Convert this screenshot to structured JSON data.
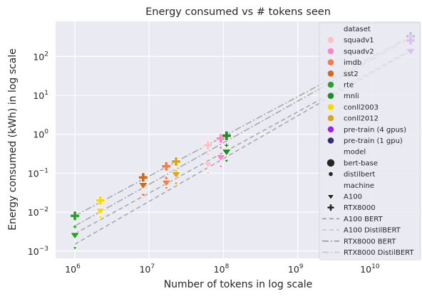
{
  "chart_data": {
    "type": "scatter",
    "title": "Energy consumed vs # tokens seen",
    "xlabel": "Number of tokens in log scale",
    "ylabel": "Energy consumed (kWh) in log scale",
    "x_scale": "log",
    "y_scale": "log",
    "xlim": [
      550000,
      45000000000
    ],
    "ylim": [
      0.00065,
      800
    ],
    "xticks": [
      {
        "value": 1000000,
        "base": "10",
        "exp": "6"
      },
      {
        "value": 10000000,
        "base": "10",
        "exp": "7"
      },
      {
        "value": 100000000,
        "base": "10",
        "exp": "8"
      },
      {
        "value": 1000000000,
        "base": "10",
        "exp": "9"
      },
      {
        "value": 10000000000,
        "base": "10",
        "exp": "10"
      }
    ],
    "yticks": [
      {
        "value": 0.001,
        "base": "10",
        "exp": "−3"
      },
      {
        "value": 0.01,
        "base": "10",
        "exp": "−2"
      },
      {
        "value": 0.1,
        "base": "10",
        "exp": "−1"
      },
      {
        "value": 1,
        "base": "10",
        "exp": "0"
      },
      {
        "value": 10,
        "base": "10",
        "exp": "1"
      },
      {
        "value": 100,
        "base": "10",
        "exp": "2"
      }
    ],
    "grid": true,
    "legend_position": "top-right",
    "colors": {
      "squadv1": "#ffc0cb",
      "squadv2": "#ff86c3",
      "imdb": "#f07f50",
      "sst2": "#d2691e",
      "rte": "#2ca02c",
      "mnli": "#228b22",
      "conll2003": "#ffd700",
      "conll2012": "#daa520",
      "pre-train (4 gpus)": "#a020f0",
      "pre-train (1 gpu)": "#3c2a6e",
      "background": "#eaeaf2",
      "grid": "#ffffff",
      "fit_lines": "#a8a8a8"
    },
    "legend": {
      "dataset_title": "dataset",
      "datasets": [
        "squadv1",
        "squadv2",
        "imdb",
        "sst2",
        "rte",
        "mnli",
        "conll2003",
        "conll2012",
        "pre-train (4 gpus)",
        "pre-train (1 gpu)"
      ],
      "model_title": "model",
      "models": [
        "bert-base",
        "distilbert"
      ],
      "machine_title": "machine",
      "machines": [
        "A100",
        "RTX8000"
      ],
      "lines": [
        {
          "label": "A100 BERT",
          "dash": "dashed"
        },
        {
          "label": "A100 DistilBERT",
          "dash": "dashed"
        },
        {
          "label": "RTX8000 BERT",
          "dash": "dashdot"
        },
        {
          "label": "RTX8000 DistilBERT",
          "dash": "dashdot"
        }
      ]
    },
    "fit_lines": [
      {
        "name": "A100 BERT",
        "dash": "dashed",
        "x": [
          1000000,
          33000000000
        ],
        "y": [
          0.0028,
          145
        ]
      },
      {
        "name": "A100 DistilBERT",
        "dash": "dashed",
        "x": [
          1000000,
          33000000000
        ],
        "y": [
          0.0015,
          140
        ]
      },
      {
        "name": "RTX8000 BERT",
        "dash": "dashdot",
        "x": [
          1000000,
          33000000000
        ],
        "y": [
          0.008,
          330
        ]
      },
      {
        "name": "RTX8000 DistilBERT",
        "dash": "dashdot",
        "x": [
          1000000,
          33000000000
        ],
        "y": [
          0.0044,
          300
        ]
      }
    ],
    "points": [
      {
        "dataset": "rte",
        "model": "bert-base",
        "machine": "RTX8000",
        "x": 1000000,
        "y": 0.008
      },
      {
        "dataset": "rte",
        "model": "distilbert",
        "machine": "RTX8000",
        "x": 1000000,
        "y": 0.0042
      },
      {
        "dataset": "rte",
        "model": "bert-base",
        "machine": "A100",
        "x": 1000000,
        "y": 0.0026
      },
      {
        "dataset": "rte",
        "model": "distilbert",
        "machine": "A100",
        "x": 1000000,
        "y": 0.0012
      },
      {
        "dataset": "conll2003",
        "model": "bert-base",
        "machine": "RTX8000",
        "x": 2200000,
        "y": 0.02
      },
      {
        "dataset": "conll2003",
        "model": "distilbert",
        "machine": "RTX8000",
        "x": 2200000,
        "y": 0.0118
      },
      {
        "dataset": "conll2003",
        "model": "bert-base",
        "machine": "A100",
        "x": 2200000,
        "y": 0.011
      },
      {
        "dataset": "conll2003",
        "model": "distilbert",
        "machine": "A100",
        "x": 2200000,
        "y": 0.0075
      },
      {
        "dataset": "sst2",
        "model": "bert-base",
        "machine": "RTX8000",
        "x": 8300000,
        "y": 0.078
      },
      {
        "dataset": "sst2",
        "model": "distilbert",
        "machine": "RTX8000",
        "x": 8300000,
        "y": 0.043
      },
      {
        "dataset": "sst2",
        "model": "bert-base",
        "machine": "A100",
        "x": 8300000,
        "y": 0.05
      },
      {
        "dataset": "sst2",
        "model": "distilbert",
        "machine": "A100",
        "x": 8300000,
        "y": 0.028
      },
      {
        "dataset": "imdb",
        "model": "bert-base",
        "machine": "RTX8000",
        "x": 17000000,
        "y": 0.15
      },
      {
        "dataset": "imdb",
        "model": "distilbert",
        "machine": "RTX8000",
        "x": 17000000,
        "y": 0.075
      },
      {
        "dataset": "imdb",
        "model": "bert-base",
        "machine": "A100",
        "x": 17000000,
        "y": 0.058
      },
      {
        "dataset": "imdb",
        "model": "distilbert",
        "machine": "A100",
        "x": 17000000,
        "y": 0.042
      },
      {
        "dataset": "conll2012",
        "model": "bert-base",
        "machine": "RTX8000",
        "x": 23000000,
        "y": 0.2
      },
      {
        "dataset": "conll2012",
        "model": "distilbert",
        "machine": "RTX8000",
        "x": 23000000,
        "y": 0.11
      },
      {
        "dataset": "conll2012",
        "model": "bert-base",
        "machine": "A100",
        "x": 23000000,
        "y": 0.095
      },
      {
        "dataset": "conll2012",
        "model": "distilbert",
        "machine": "A100",
        "x": 23000000,
        "y": 0.055
      },
      {
        "dataset": "squadv1",
        "model": "bert-base",
        "machine": "RTX8000",
        "x": 62000000,
        "y": 0.52
      },
      {
        "dataset": "squadv1",
        "model": "distilbert",
        "machine": "RTX8000",
        "x": 62000000,
        "y": 0.3
      },
      {
        "dataset": "squadv1",
        "model": "bert-base",
        "machine": "A100",
        "x": 62000000,
        "y": 0.17
      },
      {
        "dataset": "squadv1",
        "model": "distilbert",
        "machine": "A100",
        "x": 62000000,
        "y": 0.1
      },
      {
        "dataset": "squadv2",
        "model": "bert-base",
        "machine": "RTX8000",
        "x": 92000000,
        "y": 0.78
      },
      {
        "dataset": "squadv2",
        "model": "distilbert",
        "machine": "RTX8000",
        "x": 92000000,
        "y": 0.45
      },
      {
        "dataset": "squadv2",
        "model": "bert-base",
        "machine": "A100",
        "x": 92000000,
        "y": 0.26
      },
      {
        "dataset": "squadv2",
        "model": "distilbert",
        "machine": "A100",
        "x": 92000000,
        "y": 0.15
      },
      {
        "dataset": "mnli",
        "model": "bert-base",
        "machine": "RTX8000",
        "x": 110000000,
        "y": 0.92
      },
      {
        "dataset": "mnli",
        "model": "distilbert",
        "machine": "RTX8000",
        "x": 110000000,
        "y": 0.52
      },
      {
        "dataset": "mnli",
        "model": "bert-base",
        "machine": "A100",
        "x": 110000000,
        "y": 0.36
      },
      {
        "dataset": "mnli",
        "model": "distilbert",
        "machine": "A100",
        "x": 110000000,
        "y": 0.21
      },
      {
        "dataset": "pre-train (1 gpu)",
        "model": "bert-base",
        "machine": "RTX8000",
        "x": 33000000000,
        "y": 330
      },
      {
        "dataset": "pre-train (4 gpus)",
        "model": "bert-base",
        "machine": "RTX8000",
        "x": 33000000000,
        "y": 260
      },
      {
        "dataset": "pre-train (4 gpus)",
        "model": "bert-base",
        "machine": "A100",
        "x": 33000000000,
        "y": 140
      }
    ]
  }
}
